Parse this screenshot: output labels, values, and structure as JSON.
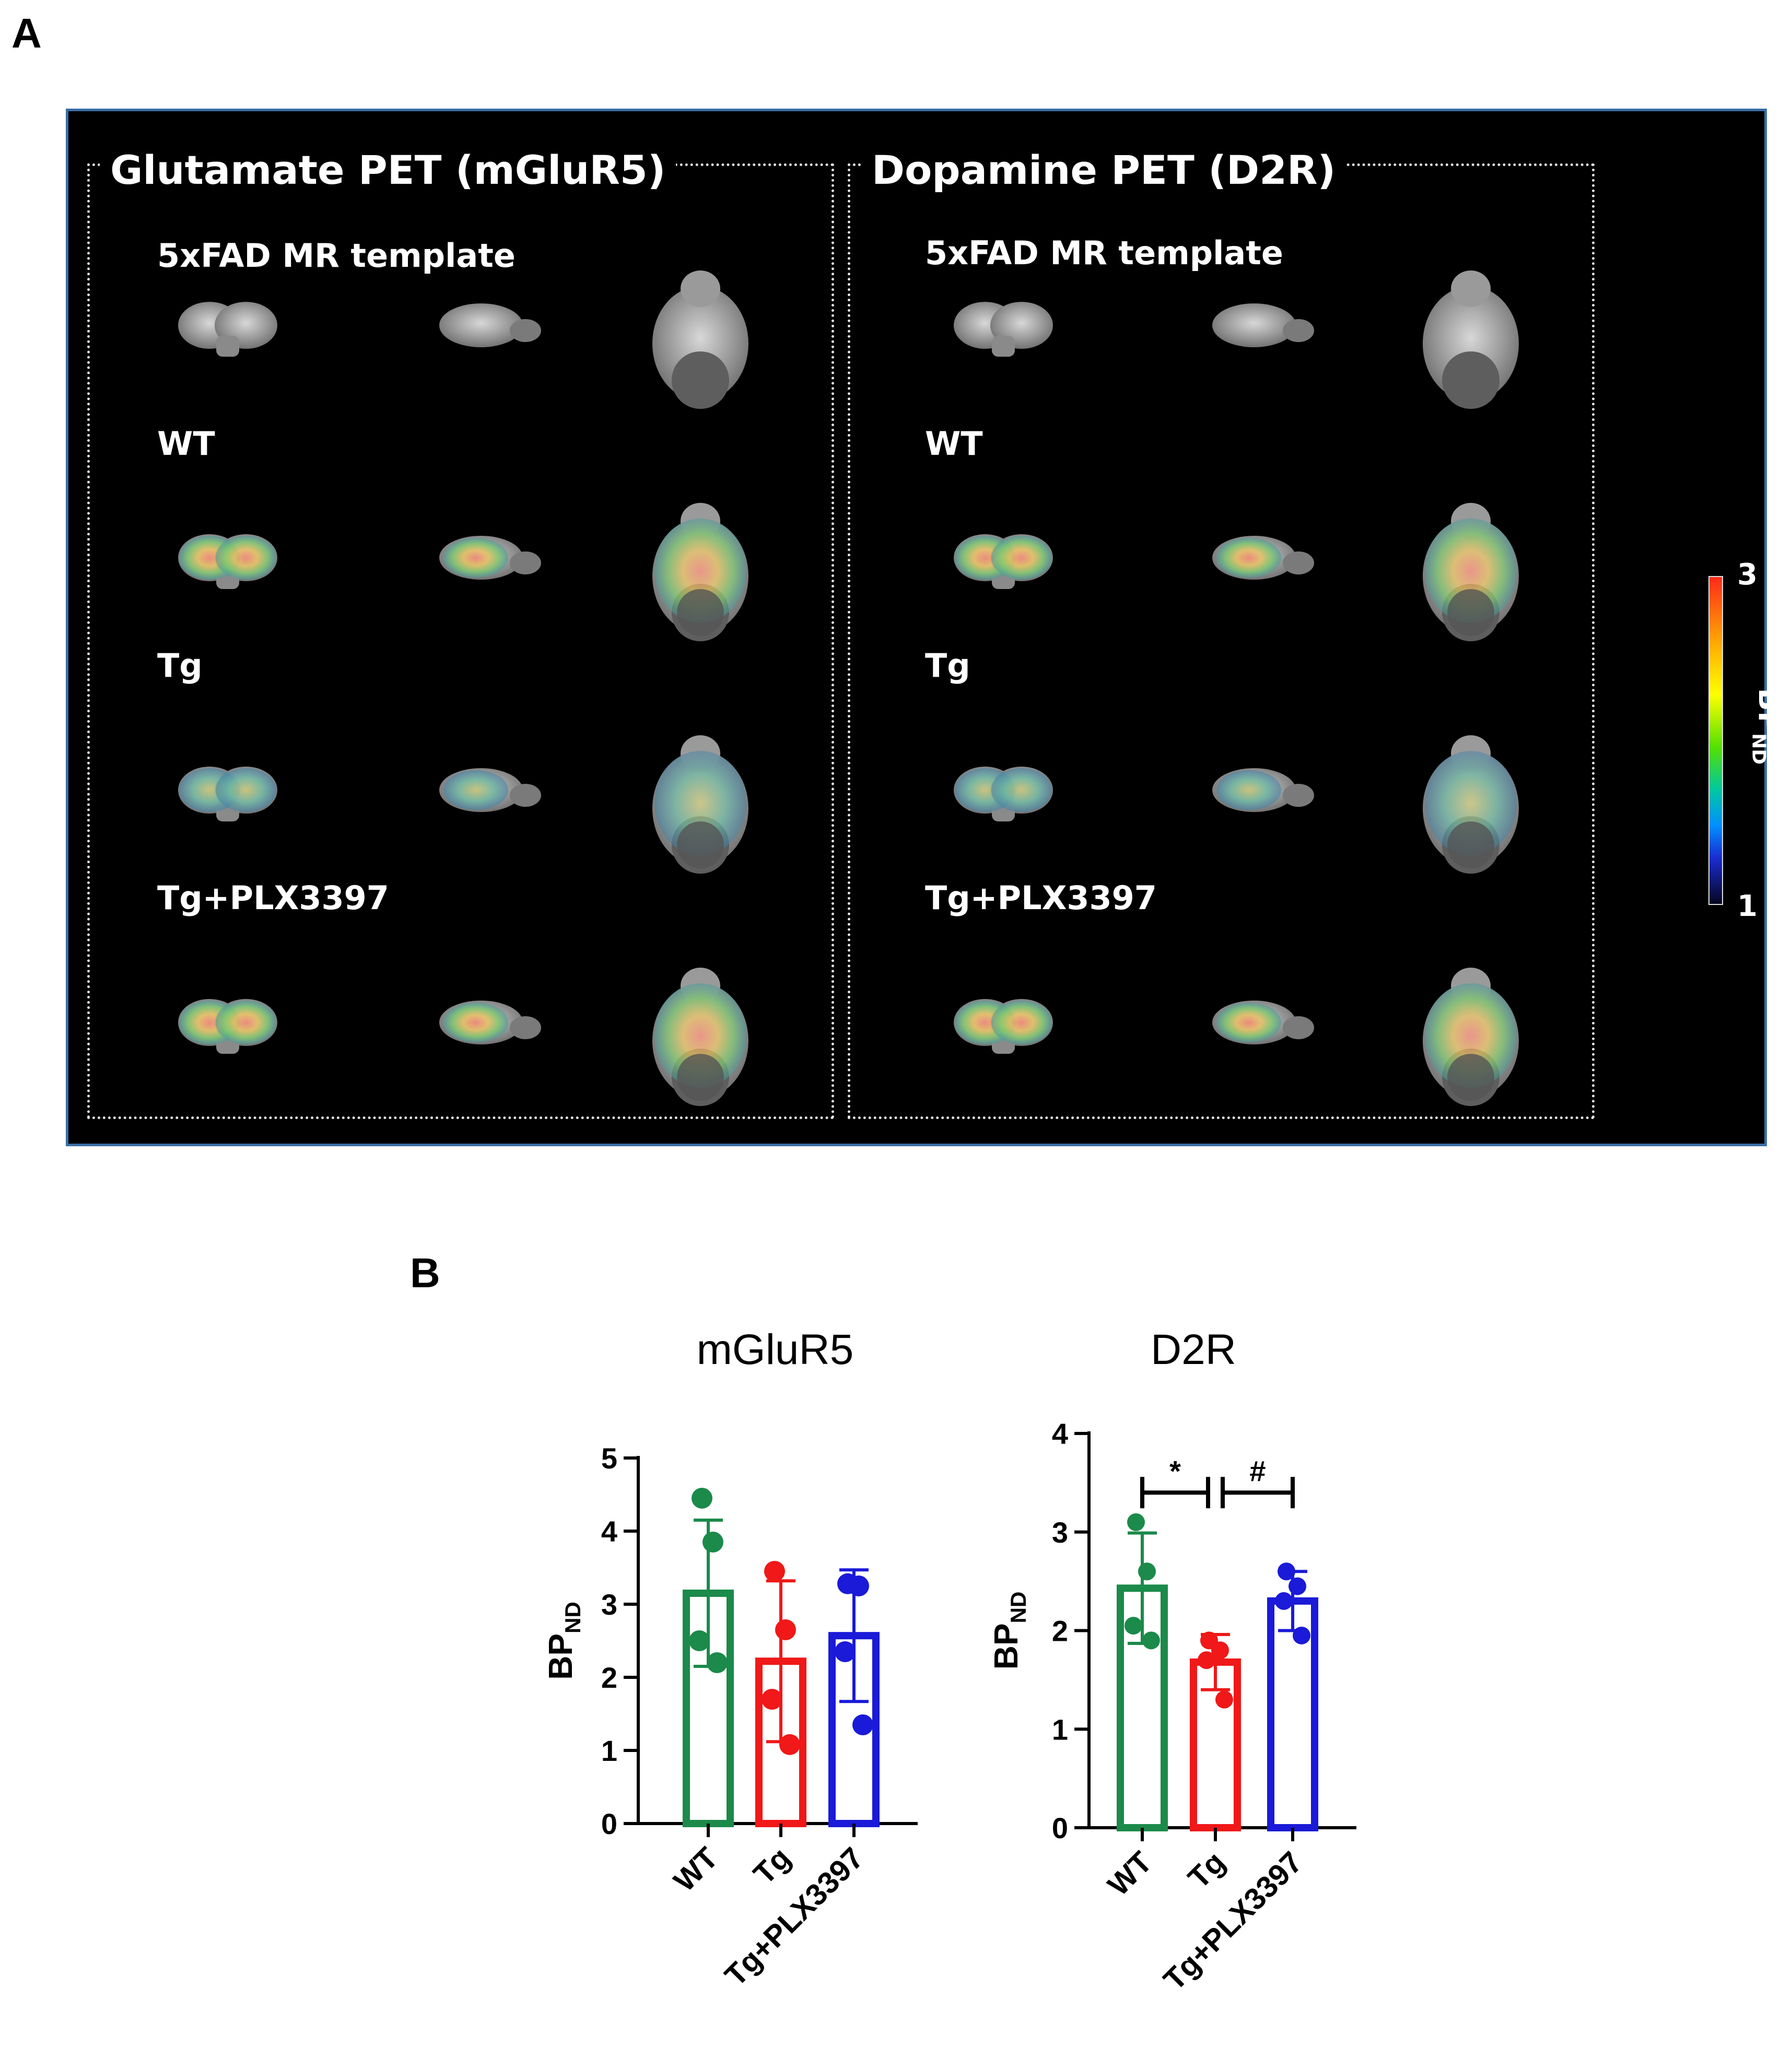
{
  "panel_a_letter": "A",
  "panel_b_letter": "B",
  "pet": {
    "groups": [
      {
        "title": "Glutamate PET (mGluR5)",
        "rows": [
          "5xFAD MR template",
          "WT",
          "Tg",
          "Tg+PLX3397"
        ]
      },
      {
        "title": "Dopamine PET (D2R)",
        "rows": [
          "5xFAD MR template",
          "WT",
          "Tg",
          "Tg+PLX3397"
        ]
      }
    ],
    "colorbar": {
      "max": "3",
      "min": "1",
      "label_main": "BP",
      "label_sub": "ND"
    }
  },
  "colors": {
    "WT": "#1b8a4a",
    "Tg": "#f01818",
    "Tg+PLX3397": "#1a1ad8"
  },
  "chart_data": [
    {
      "type": "bar",
      "title": "mGluR5",
      "ylabel_main": "BP",
      "ylabel_sub": "ND",
      "ylim": [
        0,
        5
      ],
      "yticks": [
        0,
        1,
        2,
        3,
        4,
        5
      ],
      "categories": [
        "WT",
        "Tg",
        "Tg+PLX3397"
      ],
      "values": [
        3.15,
        2.22,
        2.57
      ],
      "errors": [
        1.0,
        1.1,
        0.9
      ],
      "points": [
        [
          4.45,
          3.85,
          2.5,
          2.2
        ],
        [
          3.45,
          2.65,
          1.7,
          1.08
        ],
        [
          3.28,
          3.25,
          2.35,
          1.35
        ]
      ],
      "annotations": []
    },
    {
      "type": "bar",
      "title": "D2R",
      "ylabel_main": "BP",
      "ylabel_sub": "ND",
      "ylim": [
        0,
        4
      ],
      "yticks": [
        0,
        1,
        2,
        3,
        4
      ],
      "categories": [
        "WT",
        "Tg",
        "Tg+PLX3397"
      ],
      "values": [
        2.43,
        1.68,
        2.3
      ],
      "errors": [
        0.56,
        0.28,
        0.3
      ],
      "points": [
        [
          3.1,
          2.6,
          2.05,
          1.9
        ],
        [
          1.9,
          1.8,
          1.7,
          1.3
        ],
        [
          2.6,
          2.45,
          2.3,
          1.95
        ]
      ],
      "annotations": [
        {
          "from": 0,
          "to": 1,
          "label": "*",
          "y": 3.4
        },
        {
          "from": 1,
          "to": 2,
          "label": "#",
          "y": 3.4
        }
      ]
    }
  ]
}
